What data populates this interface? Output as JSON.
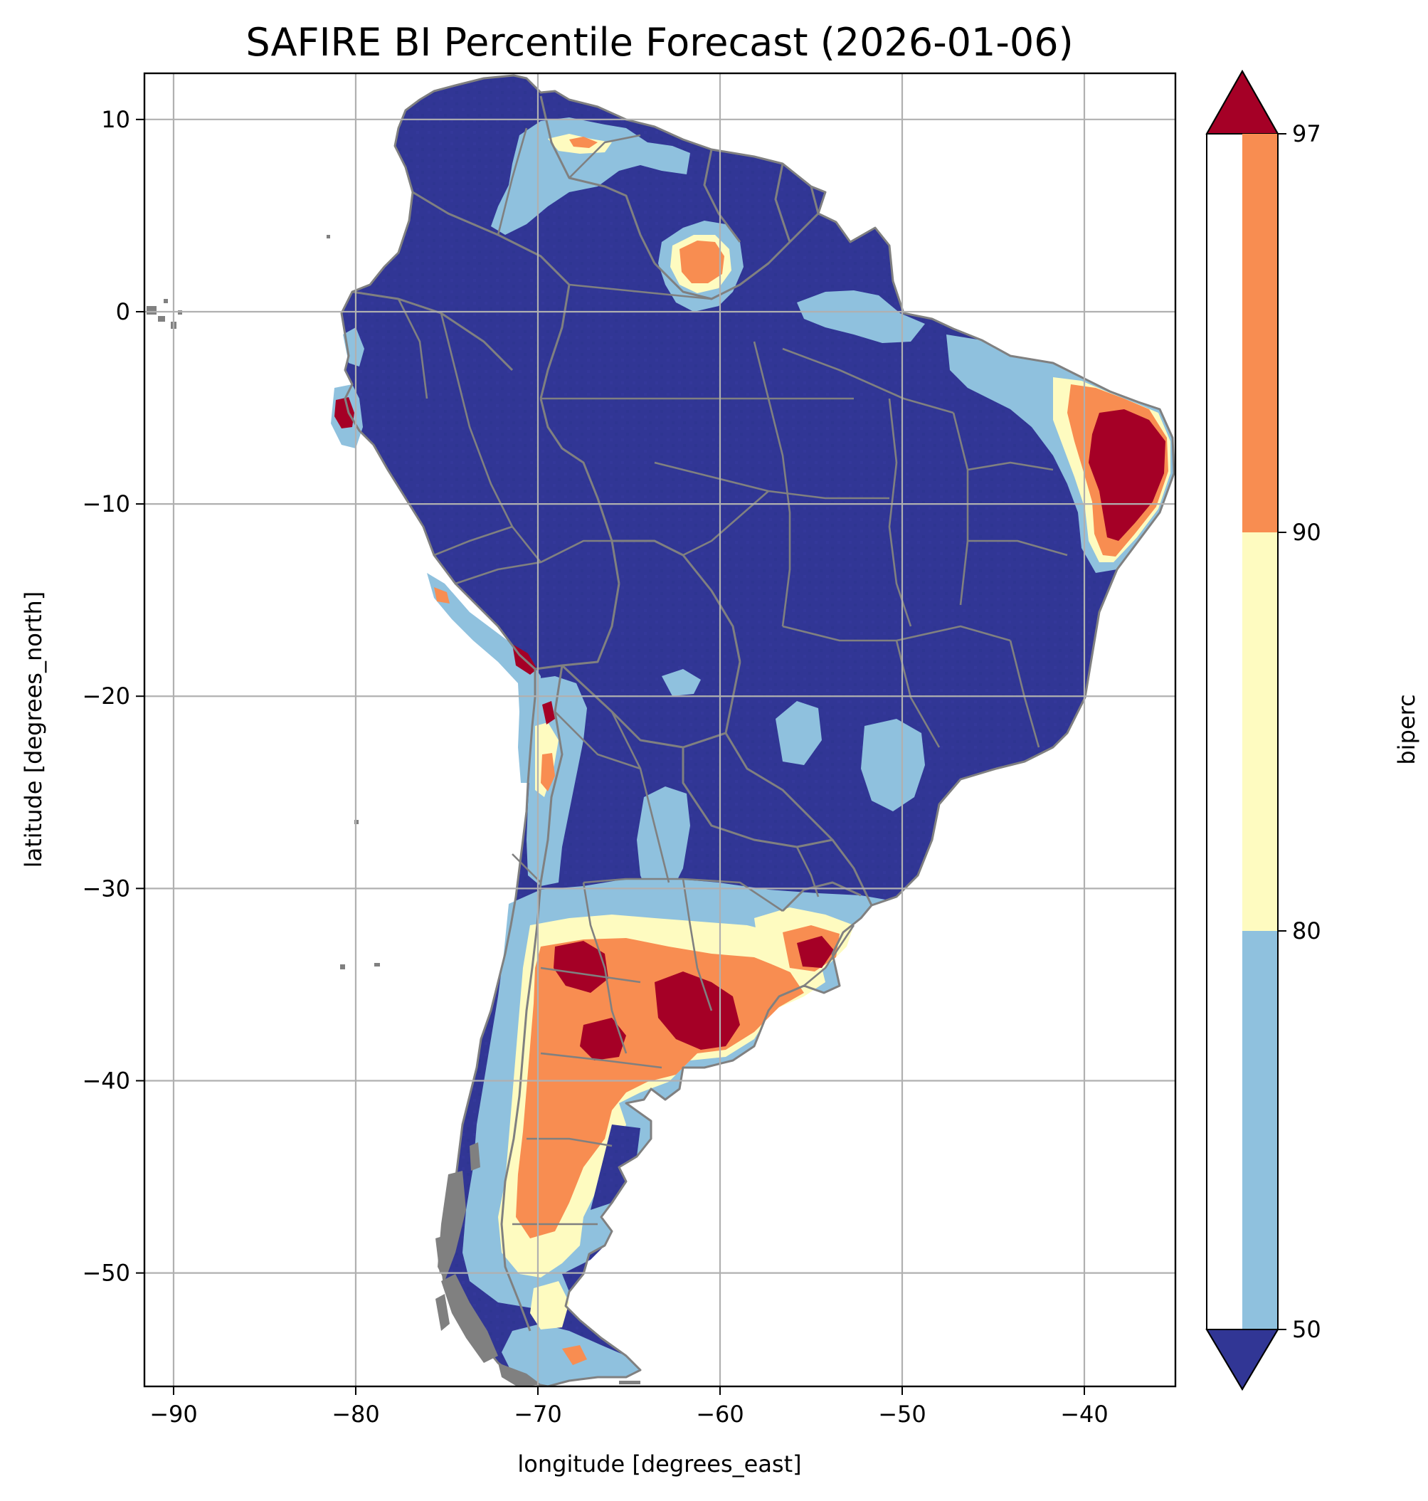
{
  "title": "SAFIRE BI Percentile Forecast (2026-01-06)",
  "x_axis": {
    "label": "longitude [degrees_east]",
    "range": [
      -91.6,
      -35.0
    ],
    "ticks": [
      -90,
      -80,
      -70,
      -60,
      -50,
      -40
    ],
    "tick_labels": [
      "−90",
      "−80",
      "−70",
      "−60",
      "−50",
      "−40"
    ]
  },
  "y_axis": {
    "label": "latitude [degrees_north]",
    "range": [
      -55.9,
      12.4
    ],
    "ticks": [
      10,
      0,
      -10,
      -20,
      -30,
      -40,
      -50
    ],
    "tick_labels": [
      "10",
      "0",
      "−10",
      "−20",
      "−30",
      "−40",
      "−50"
    ]
  },
  "grid": true,
  "colorbar": {
    "label": "biperc",
    "placement": "right",
    "boundaries": [
      50,
      80,
      90,
      97
    ],
    "tick_labels": [
      "50",
      "80",
      "90",
      "97"
    ],
    "extend": "both",
    "colors": {
      "under": "#313695",
      "b50_80": "#8fc1de",
      "b80_90": "#fefbc0",
      "b90_97": "#f88d51",
      "over": "#a50026"
    }
  },
  "map_colors": {
    "background": "#ffffff",
    "borders": "#808080",
    "grid": "#b0b0b0"
  },
  "chart_data": {
    "type": "heatmap",
    "variable": "biperc",
    "region_overview": [
      {
        "area": "Amazon basin / central Brazil",
        "class": "<50"
      },
      {
        "area": "Venezuela-Colombia llanos",
        "class": "50-80"
      },
      {
        "area": "Southern Venezuela / Roraima",
        "class": "90-97"
      },
      {
        "area": "NE Brazil coast",
        "class": ">97"
      },
      {
        "area": "Peru north coast",
        "class": ">97"
      },
      {
        "area": "Central Argentina (pampas)",
        "class": ">97"
      },
      {
        "area": "Uruguay",
        "class": ">97"
      },
      {
        "area": "Patagonia",
        "class": "90-97"
      },
      {
        "area": "Chile / Andes",
        "class": "50-80"
      },
      {
        "area": "Tierra del Fuego",
        "class": "80-90"
      }
    ]
  }
}
